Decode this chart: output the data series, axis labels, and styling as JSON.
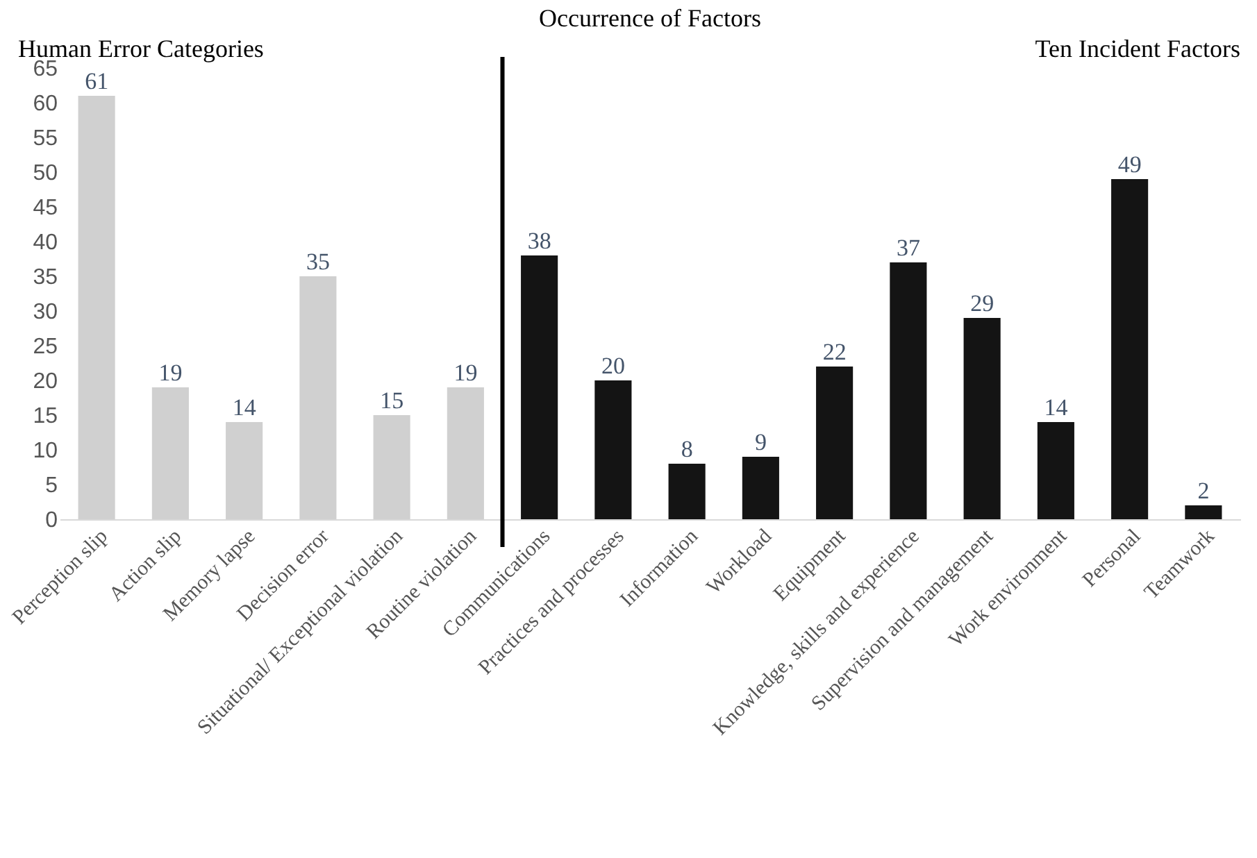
{
  "chart_data": {
    "type": "bar",
    "title": "Occurrence of Factors",
    "categories": [
      "Perception slip",
      "Action slip",
      "Memory lapse",
      "Decision error",
      "Situational/ Exceptional violation",
      "Routine violation",
      "Communications",
      "Practices and processes",
      "Information",
      "Workload",
      "Equipment",
      "Knowledge, skills and experience",
      "Supervision and management",
      "Work environment",
      "Personal",
      "Teamwork"
    ],
    "values": [
      61,
      19,
      14,
      35,
      15,
      19,
      38,
      20,
      8,
      9,
      22,
      37,
      29,
      14,
      49,
      2
    ],
    "colors": [
      "#d0d0d0",
      "#d0d0d0",
      "#d0d0d0",
      "#d0d0d0",
      "#d0d0d0",
      "#d0d0d0",
      "#141414",
      "#141414",
      "#141414",
      "#141414",
      "#141414",
      "#141414",
      "#141414",
      "#141414",
      "#141414",
      "#141414"
    ],
    "ylim": [
      0,
      65
    ],
    "yticks": [
      0,
      5,
      10,
      15,
      20,
      25,
      30,
      35,
      40,
      45,
      50,
      55,
      60,
      65
    ],
    "annotations": [
      "Human Error Categories",
      "Ten Incident Factors"
    ],
    "data_labels": true,
    "grid": false,
    "legend": false
  }
}
